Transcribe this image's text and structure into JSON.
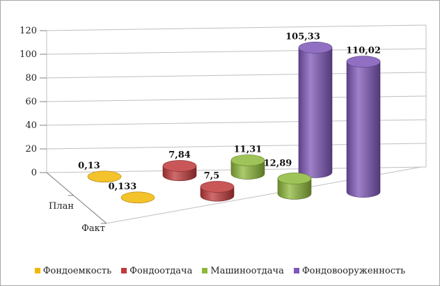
{
  "chart_data": {
    "type": "bar",
    "subtype": "3d-cylinder",
    "title": "",
    "xlabel": "",
    "ylabel": "",
    "ylim": [
      0,
      120
    ],
    "yticks": [
      "0",
      "20",
      "40",
      "60",
      "80",
      "100",
      "120"
    ],
    "depth_categories": [
      "План",
      "Факт"
    ],
    "grid": true,
    "legend_position": "bottom",
    "series": [
      {
        "name": "Фондоемкость",
        "color": "#f2b705",
        "values": [
          0.13,
          0.133
        ],
        "labels": [
          "0,13",
          "0,133"
        ]
      },
      {
        "name": "Фондоотдача",
        "color": "#c0393b",
        "values": [
          7.84,
          7.5
        ],
        "labels": [
          "7,84",
          "7,5"
        ]
      },
      {
        "name": "Машиноотдача",
        "color": "#8db83a",
        "values": [
          11.31,
          12.89
        ],
        "labels": [
          "11,31",
          "12,89"
        ]
      },
      {
        "name": "Фондовооруженность",
        "color": "#7e57b8",
        "values": [
          105.33,
          110.02
        ],
        "labels": [
          "105,33",
          "110,02"
        ]
      }
    ]
  }
}
